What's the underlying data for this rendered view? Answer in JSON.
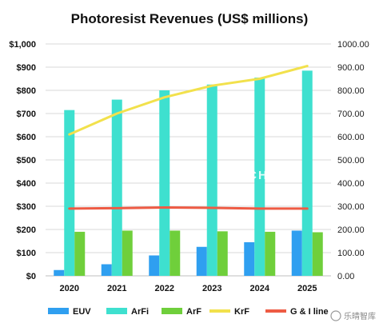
{
  "chart_data": {
    "type": "bar",
    "title": "Photoresist Revenues (US$ millions)",
    "categories": [
      "2020",
      "2021",
      "2022",
      "2023",
      "2024",
      "2025"
    ],
    "y_left": {
      "ylim": [
        0,
        1000
      ],
      "ticks": [
        "$0",
        "$100",
        "$200",
        "$300",
        "$400",
        "$500",
        "$600",
        "$700",
        "$800",
        "$900",
        "$1,000"
      ]
    },
    "y_right": {
      "ylim": [
        0,
        1000
      ],
      "ticks": [
        "0.00",
        "100.00",
        "200.00",
        "300.00",
        "400.00",
        "500.00",
        "600.00",
        "700.00",
        "800.00",
        "900.00",
        "1000.00"
      ]
    },
    "grid": true,
    "legend_position": "bottom",
    "series": [
      {
        "name": "EUV",
        "kind": "bar",
        "color": "#2f9ff0",
        "values": [
          25,
          50,
          88,
          125,
          145,
          195
        ]
      },
      {
        "name": "ArFi",
        "kind": "bar",
        "color": "#3ee0cf",
        "values": [
          715,
          760,
          800,
          825,
          855,
          885
        ]
      },
      {
        "name": "ArF",
        "kind": "bar",
        "color": "#6fcf3b",
        "values": [
          190,
          195,
          195,
          192,
          190,
          188
        ]
      },
      {
        "name": "KrF",
        "kind": "line",
        "color": "#f2e14c",
        "values": [
          610,
          700,
          770,
          820,
          850,
          905
        ]
      },
      {
        "name": "G & I line",
        "kind": "line",
        "color": "#ee5b44",
        "values": [
          290,
          292,
          295,
          293,
          290,
          290
        ]
      }
    ],
    "watermark": "TECHCET"
  },
  "watermark_badge": "乐晴智库"
}
